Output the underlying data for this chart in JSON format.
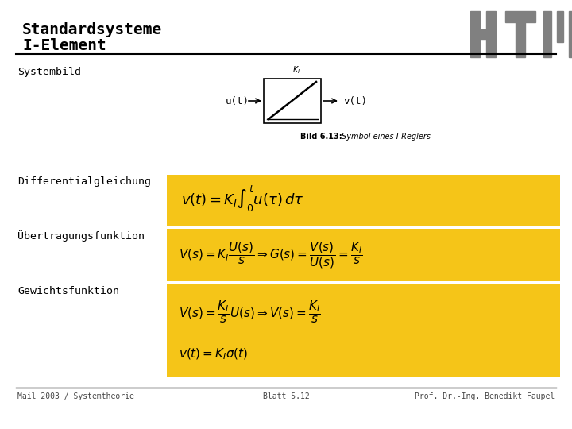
{
  "title_line1": "Standardsysteme",
  "title_line2": "I-Element",
  "bg_color": "#ffffff",
  "title_color": "#000000",
  "header_line_color": "#000000",
  "footer_line_color": "#000000",
  "section_bg_color": "#F5C518",
  "section_label_color": "#000000",
  "formula_color": "#000000",
  "footer_left": "Mail 2003 / Systemtheorie",
  "footer_center": "Blatt 5.12",
  "footer_right": "Prof. Dr.-Ing. Benedikt Faupel",
  "htw_logo_color": "#808080",
  "caption_bold": "Bild 6.13:",
  "caption_rest": " Symbol eines I-Reglers",
  "label_systembild": "Systembild",
  "label_dgl": "Differentialgleichung",
  "label_ueber": "Übertragungsfunktion",
  "label_gew": "Gewichtsfunktion",
  "formula_dgl": "$v(t) = K_I\\int_0^t u(\\tau)d\\tau$",
  "formula_ueber": "$V(s) = K_I\\dfrac{U(s)}{s} \\Rightarrow G(s) = \\dfrac{V(s)}{U(s)} = \\dfrac{K_I}{s}$",
  "formula_gew1": "$V(s) = \\dfrac{K_I}{s}U(s) \\Rightarrow V(s) = \\dfrac{K_I}{s}$",
  "formula_gew2": "$v(t) = K_I\\sigma(t)$"
}
